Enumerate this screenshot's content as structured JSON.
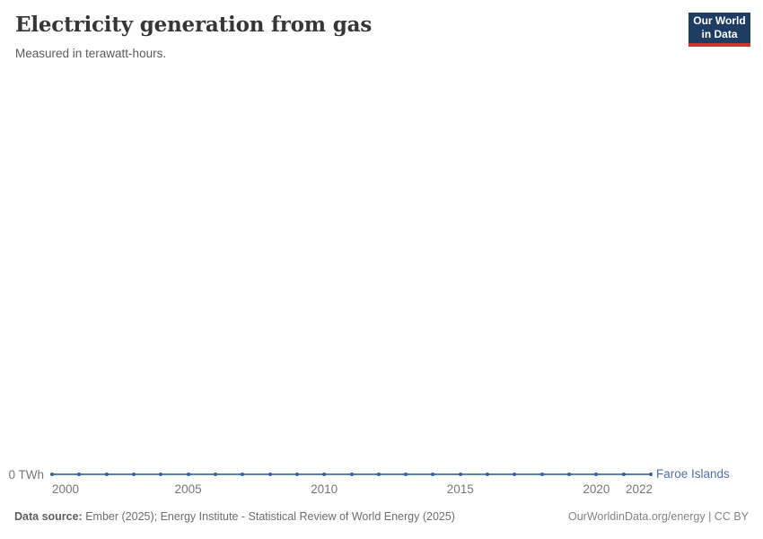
{
  "header": {
    "title": "Electricity generation from gas",
    "subtitle": "Measured in terawatt-hours."
  },
  "logo": {
    "line1": "Our World",
    "line2": "in Data",
    "bg_color": "#1d3d63",
    "accent_color": "#d0342c"
  },
  "chart_data": {
    "type": "line",
    "title": "Electricity generation from gas",
    "subtitle": "Measured in terawatt-hours.",
    "unit": "TWh",
    "x": [
      2000,
      2001,
      2002,
      2003,
      2004,
      2005,
      2006,
      2007,
      2008,
      2009,
      2010,
      2011,
      2012,
      2013,
      2014,
      2015,
      2016,
      2017,
      2018,
      2019,
      2020,
      2021,
      2022
    ],
    "series": [
      {
        "name": "Faroe Islands",
        "values": [
          0,
          0,
          0,
          0,
          0,
          0,
          0,
          0,
          0,
          0,
          0,
          0,
          0,
          0,
          0,
          0,
          0,
          0,
          0,
          0,
          0,
          0,
          0
        ]
      }
    ],
    "x_ticks": [
      "2000",
      "2005",
      "2010",
      "2015",
      "2020",
      "2022"
    ],
    "y_ticks": [
      "0 TWh"
    ],
    "xlim": [
      2000,
      2022
    ],
    "ylim": [
      0,
      0
    ],
    "grid": false,
    "legend_position": "right-of-line",
    "colors": {
      "line": "#5b7fb8",
      "marker": "#38619e",
      "entity_label": "#4d72a8"
    }
  },
  "footer": {
    "source_label": "Data source:",
    "source_text": " Ember (2025); Energy Institute - Statistical Review of World Energy (2025)",
    "right_text": "OurWorldinData.org/energy | CC BY"
  }
}
